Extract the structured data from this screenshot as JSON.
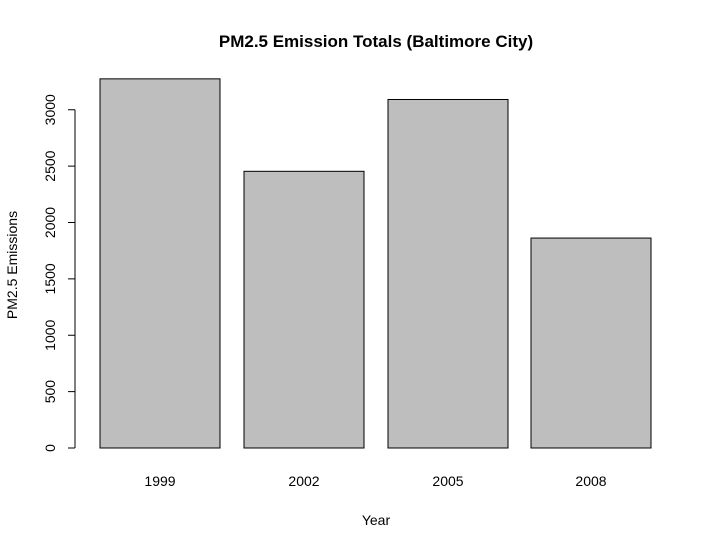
{
  "chart_data": {
    "type": "bar",
    "title": "PM2.5 Emission Totals (Baltimore City)",
    "xlabel": "Year",
    "ylabel": "PM2.5 Emissions",
    "categories": [
      "1999",
      "2002",
      "2005",
      "2008"
    ],
    "values": [
      3274,
      2454,
      3091,
      1862
    ],
    "yticks": [
      0,
      500,
      1000,
      1500,
      2000,
      2500,
      3000
    ],
    "ylim": [
      0,
      3300
    ],
    "grid": false,
    "bar_color": "#bebebe",
    "border_color": "#000000"
  }
}
